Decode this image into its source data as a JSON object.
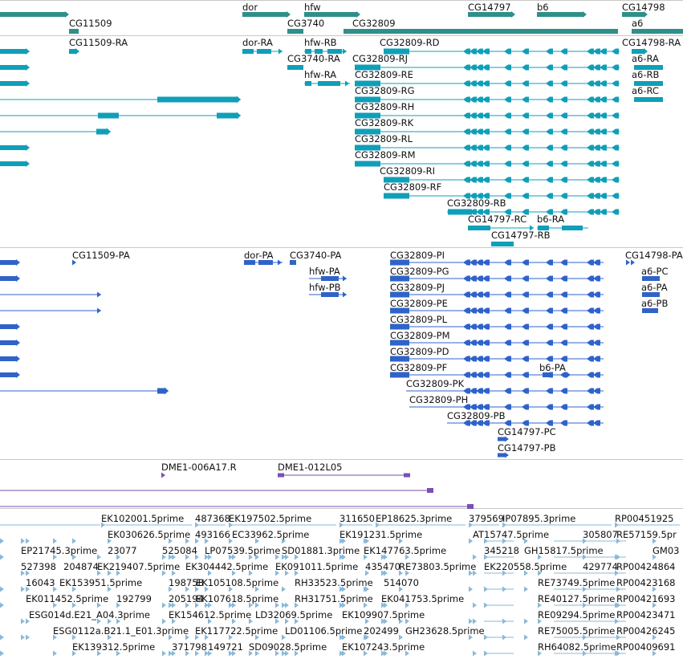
{
  "colors": {
    "gene": "#2f8f8a",
    "transcript": "#0f9fb8",
    "protein": "#2f63c9",
    "cdna": "#7a4fb5",
    "est": "#8ab9d9",
    "separator": "#c8c8c8"
  },
  "tracks": {
    "genes": {
      "labels": [
        "dor",
        "hfw",
        "CG14797",
        "b6",
        "CG14798",
        "CG11509",
        "CG3740",
        "CG32809",
        "a6"
      ]
    },
    "transcripts": {
      "labels": [
        "CG11509-RA",
        "dor-RA",
        "hfw-RB",
        "CG32809-RD",
        "CG14798-RA",
        "CG3740-RA",
        "CG32809-RJ",
        "a6-RA",
        "hfw-RA",
        "CG32809-RE",
        "a6-RB",
        "CG32809-RG",
        "a6-RC",
        "CG32809-RH",
        "CG32809-RK",
        "CG32809-RL",
        "CG32809-RM",
        "CG32809-RI",
        "CG32809-RF",
        "CG32809-RB",
        "CG14797-RC",
        "b6-RA",
        "CG14797-RB"
      ]
    },
    "proteins": {
      "labels": [
        "CG11509-PA",
        "dor-PA",
        "CG3740-PA",
        "CG32809-PI",
        "CG14798-PA",
        "CG32809-PG",
        "a6-PC",
        "hfw-PA",
        "CG32809-PJ",
        "a6-PA",
        "hfw-PB",
        "CG32809-PE",
        "a6-PB",
        "CG32809-PL",
        "CG32809-PM",
        "CG32809-PD",
        "CG32809-PF",
        "b6-PA",
        "CG32809-PK",
        "CG32809-PH",
        "CG32809-PB",
        "CG14797-PC",
        "CG14797-PB"
      ]
    },
    "cdna": {
      "labels": [
        "DME1-006A17.R",
        "DME1-012L05"
      ]
    },
    "ests": {
      "labels": [
        "EK102001.5prime",
        "487368",
        "EK197502.5prime",
        "311650",
        "EP18625.3prime",
        "379569",
        "IP07895.3prime",
        "RP00451925",
        "EK030626.5prime",
        "493166",
        "EC33962.5prime",
        "EK191231.5prime",
        "AT15747.5prime",
        "305807",
        "RE57159.5pr",
        "EP21745.3prime",
        "23077",
        "525084",
        "LP07539.5prime",
        "SD01881.3prime",
        "EK147763.5prime",
        "345218",
        "GH15817.5prime",
        "GM03",
        "527398",
        "204874",
        "EK219407.5prime",
        "EK304442.5prime",
        "EK091011.5prime",
        "435470",
        "RE73803.5prime",
        "EK220558.5prime",
        "429774",
        "RP00424864",
        "16043",
        "EK153951.5prime",
        "198758",
        "EK105108.5prime",
        "RH33523.5prime",
        "514070",
        "RE73749.5prime",
        "RP00423168",
        "EK011452.5prime",
        "192799",
        "205194",
        "EK107618.5prime",
        "RH31751.5prime",
        "EK041753.5prime",
        "RE40127.5prime",
        "RP00421693",
        "ESG014d.E21_A04.3prime",
        "EK154612.5prime",
        "LD32069.5prime",
        "EK109907.5prime",
        "RE09294.5prime",
        "RP00423471",
        "ESG0112a.B21.1_E01.3prime",
        "EK117722.5prime",
        "LD01106.5prime",
        "202499",
        "GH23628.5prime",
        "RE75005.5prime",
        "RP00426245",
        "EK139312.5prime",
        "371798",
        "149721",
        "SD09028.5prime",
        "EK107243.5prime",
        "RH64082.5prime",
        "RP00409691"
      ]
    }
  }
}
